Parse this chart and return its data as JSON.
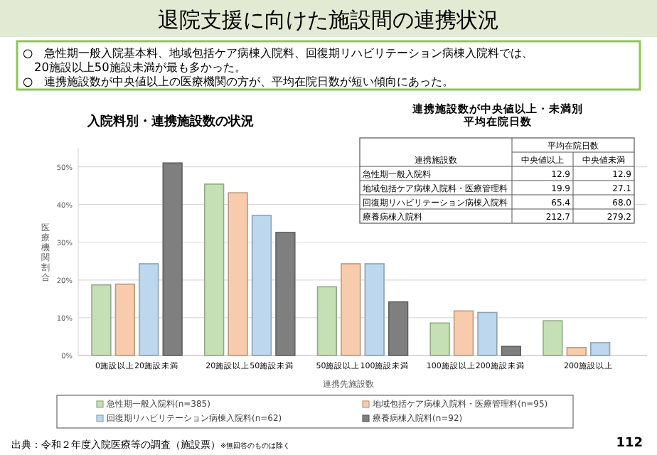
{
  "chart_data": [
    {
      "type": "other",
      "title": "退院支援に向けた施設間の連携状況",
      "annotations": [
        "○　急性期一般入院基本料、地域包括ケア病棟入院料、回復期リハビリテーション病棟入院料では、\n20施設以上50施設未満が最も多かった。",
        "○　連携施設数が中央値以上の医療機関の方が、平均在院日数が短い傾向にあった。",
        "出典：令和２年度入院医療等の調査（施設票）",
        "※無回答のものは除く",
        "112"
      ]
    },
    {
      "type": "bar",
      "title": "入院料別・連携施設数の状況",
      "xlabel": "連携先施設数",
      "ylabel": "医療機関割合",
      "categories": [
        "0施設以上20施設未満",
        "20施設以上50施設未満",
        "50施設以上100施設未満",
        "100施設以上200施設未満",
        "200施設以上"
      ],
      "series": [
        {
          "name": "急性期一般入院料(n=385)",
          "color": "#c5e0b4",
          "values": [
            18.7,
            45.4,
            18.2,
            8.6,
            9.2
          ]
        },
        {
          "name": "地域包括ケア病棟入院料・医療管理料(n=95)",
          "color": "#f8cbad",
          "values": [
            18.9,
            43.1,
            24.3,
            11.8,
            2.1
          ]
        },
        {
          "name": "回復期リハビリテーション病棟入院料(n=62)",
          "color": "#bdd7ee",
          "values": [
            24.3,
            37.1,
            24.3,
            11.4,
            3.4
          ]
        },
        {
          "name": "療養病棟入院料(n=92)",
          "color": "#7f7f7f",
          "values": [
            51.0,
            32.6,
            14.2,
            2.4,
            null
          ]
        }
      ],
      "ylim": [
        0,
        55
      ],
      "yticks": [
        {
          "value": 0,
          "label": "0%"
        },
        {
          "value": 10,
          "label": "10%"
        },
        {
          "value": 20,
          "label": "20%"
        },
        {
          "value": 30,
          "label": "30%"
        },
        {
          "value": 40,
          "label": "40%"
        },
        {
          "value": 50,
          "label": "50%"
        }
      ],
      "grid": "y",
      "legend": "bottom"
    },
    {
      "type": "other",
      "title": "連携施設数が中央値以上・未満別",
      "subtitle": "平均在院日数",
      "annotations": [
        "平均在院日数",
        "連携施設数",
        "中央値以上",
        "中央値未満",
        "急性期一般入院料",
        "12.9",
        "12.9",
        "地域包括ケア病棟入院料・医療管理料",
        "19.9",
        "27.1",
        "回復期リハビリテーション病棟入院料",
        "65.4",
        "68.0",
        "療養病棟入院料",
        "212.7",
        "279.2"
      ]
    }
  ]
}
